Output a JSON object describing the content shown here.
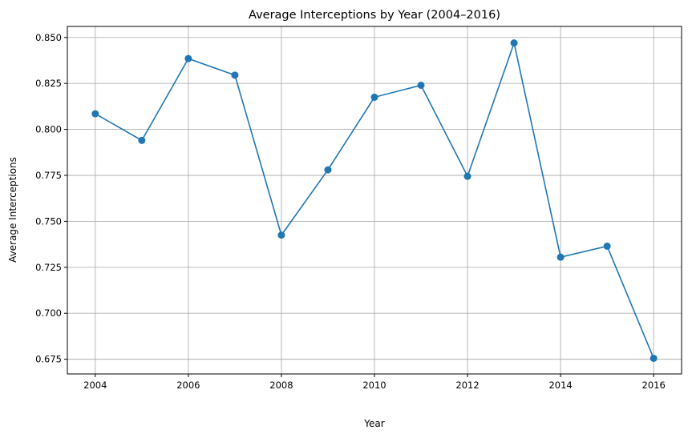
{
  "chart_data": {
    "type": "line",
    "title": "Average Interceptions by Year (2004–2016)",
    "xlabel": "Year",
    "ylabel": "Average Interceptions",
    "x": [
      2004,
      2005,
      2006,
      2007,
      2008,
      2009,
      2010,
      2011,
      2012,
      2013,
      2014,
      2015,
      2016
    ],
    "series": [
      {
        "values": [
          0.8085,
          0.794,
          0.8385,
          0.8295,
          0.7425,
          0.778,
          0.8175,
          0.824,
          0.7745,
          0.847,
          0.7305,
          0.7365,
          0.6755
        ],
        "color": "#1f77b4",
        "marker": "circle"
      }
    ],
    "xlim": [
      2003.4,
      2016.6
    ],
    "ylim": [
      0.667,
      0.856
    ],
    "xticks": [
      2004,
      2006,
      2008,
      2010,
      2012,
      2014,
      2016
    ],
    "yticks": [
      0.675,
      0.7,
      0.725,
      0.75,
      0.775,
      0.8,
      0.825,
      0.85
    ],
    "ytick_labels": [
      "0.675",
      "0.700",
      "0.725",
      "0.750",
      "0.775",
      "0.800",
      "0.825",
      "0.850"
    ],
    "grid": true,
    "legend": "none"
  }
}
